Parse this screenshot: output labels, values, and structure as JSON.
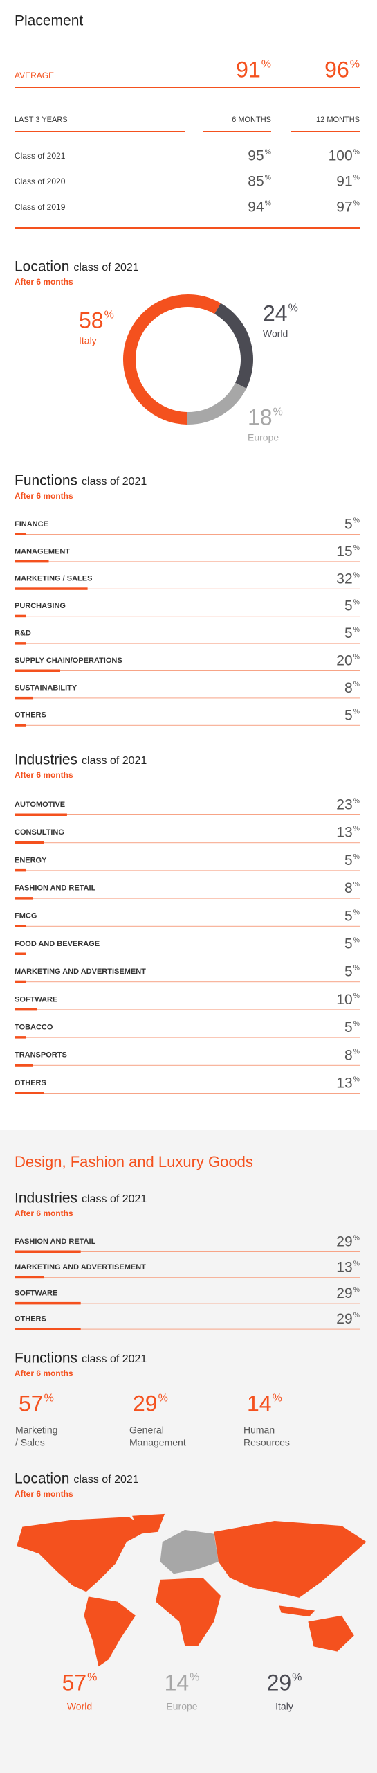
{
  "percent_sign": "%",
  "placement": {
    "title": "Placement",
    "average": {
      "label": "AVERAGE",
      "six_months": 91,
      "twelve_months": 96
    },
    "header": {
      "label": "LAST 3 YEARS",
      "six_months": "6 MONTHS",
      "twelve_months": "12 MONTHS"
    },
    "rows": [
      {
        "label": "Class of 2021",
        "six_months": 95,
        "twelve_months": 100
      },
      {
        "label": "Class of 2020",
        "six_months": 85,
        "twelve_months": 91
      },
      {
        "label": "Class of 2019",
        "six_months": 94,
        "twelve_months": 97
      }
    ]
  },
  "location": {
    "title": "Location",
    "subtitle": "class of 2021",
    "note": "After 6 months",
    "segments": [
      {
        "name": "World",
        "value": 24,
        "color": "#4b4b53"
      },
      {
        "name": "Europe",
        "value": 18,
        "color": "#a7a7a7"
      },
      {
        "name": "Italy",
        "value": 58,
        "color": "#f4511e"
      }
    ]
  },
  "functions": {
    "title": "Functions",
    "subtitle": "class of 2021",
    "note": "After 6 months",
    "items": [
      {
        "label": "FINANCE",
        "value": 5
      },
      {
        "label": "MANAGEMENT",
        "value": 15
      },
      {
        "label": "MARKETING / SALES",
        "value": 32
      },
      {
        "label": "PURCHASING",
        "value": 5
      },
      {
        "label": "R&D",
        "value": 5
      },
      {
        "label": "SUPPLY CHAIN/OPERATIONS",
        "value": 20
      },
      {
        "label": "SUSTAINABILITY",
        "value": 8
      },
      {
        "label": "OTHERS",
        "value": 5
      }
    ]
  },
  "industries": {
    "title": "Industries",
    "subtitle": "class of 2021",
    "note": "After 6 months",
    "items": [
      {
        "label": "AUTOMOTIVE",
        "value": 23
      },
      {
        "label": "CONSULTING",
        "value": 13
      },
      {
        "label": "ENERGY",
        "value": 5
      },
      {
        "label": "FASHION AND RETAIL",
        "value": 8
      },
      {
        "label": "FMCG",
        "value": 5
      },
      {
        "label": "FOOD AND BEVERAGE",
        "value": 5
      },
      {
        "label": "MARKETING AND ADVERTISEMENT",
        "value": 5
      },
      {
        "label": "SOFTWARE",
        "value": 10
      },
      {
        "label": "TOBACCO",
        "value": 5
      },
      {
        "label": "TRANSPORTS",
        "value": 8
      },
      {
        "label": "OTHERS",
        "value": 13
      }
    ]
  },
  "luxury": {
    "title": "Design, Fashion and Luxury Goods",
    "industries": {
      "title": "Industries",
      "subtitle": "class of 2021",
      "note": "After 6 months",
      "items": [
        {
          "label": "FASHION AND RETAIL",
          "value": 29
        },
        {
          "label": "MARKETING AND ADVERTISEMENT",
          "value": 13
        },
        {
          "label": "SOFTWARE",
          "value": 29
        },
        {
          "label": "OTHERS",
          "value": 29
        }
      ]
    },
    "functions": {
      "title": "Functions",
      "subtitle": "class of 2021",
      "note": "After 6 months",
      "items": [
        {
          "label": [
            "Marketing",
            "/ Sales"
          ],
          "value": 57
        },
        {
          "label": [
            "General",
            "Management"
          ],
          "value": 29
        },
        {
          "label": [
            "Human",
            "Resources"
          ],
          "value": 14
        }
      ]
    },
    "location": {
      "title": "Location",
      "subtitle": "class of 2021",
      "note": "After 6 months",
      "segments": [
        {
          "name": "World",
          "value": 57,
          "color": "#f4511e"
        },
        {
          "name": "Europe",
          "value": 14,
          "color": "#a7a7a7"
        },
        {
          "name": "Italy",
          "value": 29,
          "color": "#4b4b53"
        }
      ]
    }
  }
}
